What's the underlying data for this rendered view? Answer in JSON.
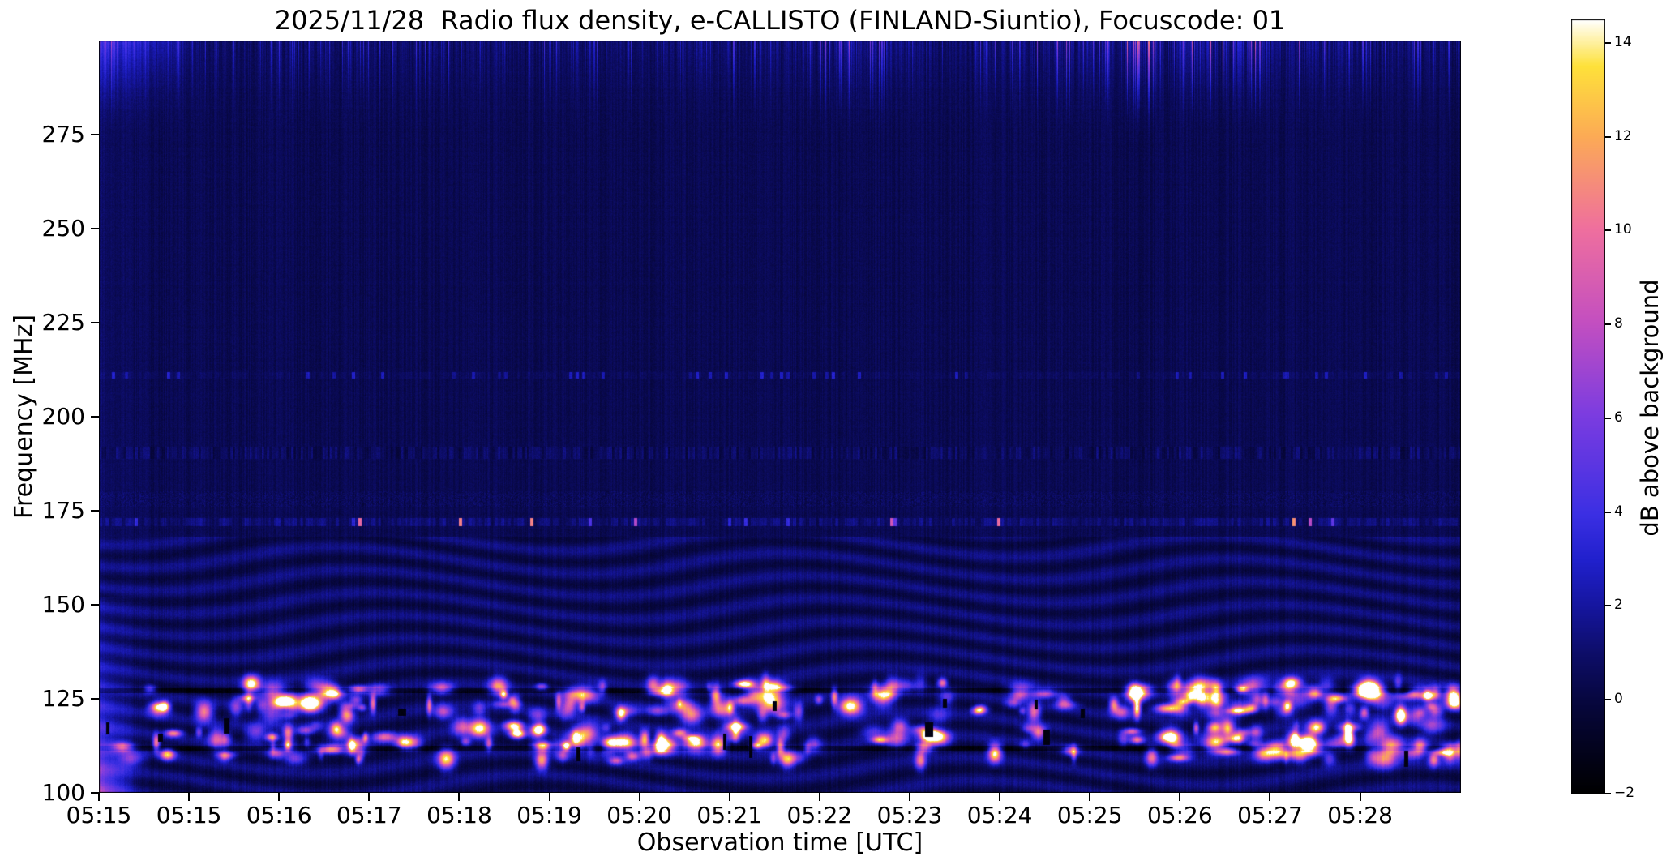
{
  "chart_data": {
    "type": "heatmap",
    "title": "2025/11/28  Radio flux density, e-CALLISTO (FINLAND-Siuntio), Focuscode: 01",
    "date": "2025/11/28",
    "station": "FINLAND-Siuntio",
    "focuscode": "01",
    "xlabel": "Observation time [UTC]",
    "ylabel": "Frequency [MHz]",
    "x_tick_labels": [
      "05:15",
      "05:15",
      "05:16",
      "05:17",
      "05:18",
      "05:19",
      "05:20",
      "05:21",
      "05:22",
      "05:23",
      "05:24",
      "05:25",
      "05:26",
      "05:27",
      "05:28"
    ],
    "x_span_ticks": 15.12,
    "ylim": [
      100,
      300
    ],
    "y_ticks": [
      275,
      250,
      225,
      200,
      175,
      150,
      125,
      100
    ],
    "grid": false,
    "legend": "none",
    "colorbar": {
      "label": "dB above background",
      "vmin": -2,
      "vmax": 14.5,
      "ticks": [
        14,
        12,
        10,
        8,
        6,
        4,
        2,
        0,
        -2
      ],
      "tick_labels": [
        "14",
        "12",
        "10",
        "8",
        "6",
        "4",
        "2",
        "0",
        "−2"
      ]
    },
    "colormap": {
      "name": "gnuplot2-like",
      "stops": [
        [
          0.0,
          "#000000"
        ],
        [
          0.06,
          "#03031f"
        ],
        [
          0.12,
          "#07073f"
        ],
        [
          0.18,
          "#0d0d68"
        ],
        [
          0.24,
          "#15159d"
        ],
        [
          0.3,
          "#2020cc"
        ],
        [
          0.36,
          "#3b2fe3"
        ],
        [
          0.49,
          "#7c3ce0"
        ],
        [
          0.61,
          "#c44fc0"
        ],
        [
          0.73,
          "#ef6f9e"
        ],
        [
          0.85,
          "#fcab55"
        ],
        [
          0.94,
          "#fee13a"
        ],
        [
          1.0,
          "#ffffff"
        ]
      ]
    },
    "background_db": 0.4,
    "features": {
      "rfi_speckle_lines_mhz": [
        172,
        178,
        190.5,
        211
      ],
      "dark_horizontal_lines_mhz": [
        127.2,
        111.8
      ],
      "burst_band_mhz": [
        106,
        130
      ],
      "fringe_band_mhz": [
        100,
        168
      ],
      "fringe_period_mhz": 6,
      "top_streak_band_mhz": [
        272,
        300
      ],
      "startup_blob": {
        "freq_range_mhz": [
          100,
          152
        ],
        "duration_s": 25
      },
      "note": "Quiet blue background; intermittent bright RFI bursts (magenta/orange/yellow) between ~106 and ~130 MHz; wavy interference fringes below ~168 MHz; speckled RFI line at ~172 MHz; brighter blue streaks at top of band, strongest at start of file; pink startup blob at lower-left edge"
    }
  }
}
